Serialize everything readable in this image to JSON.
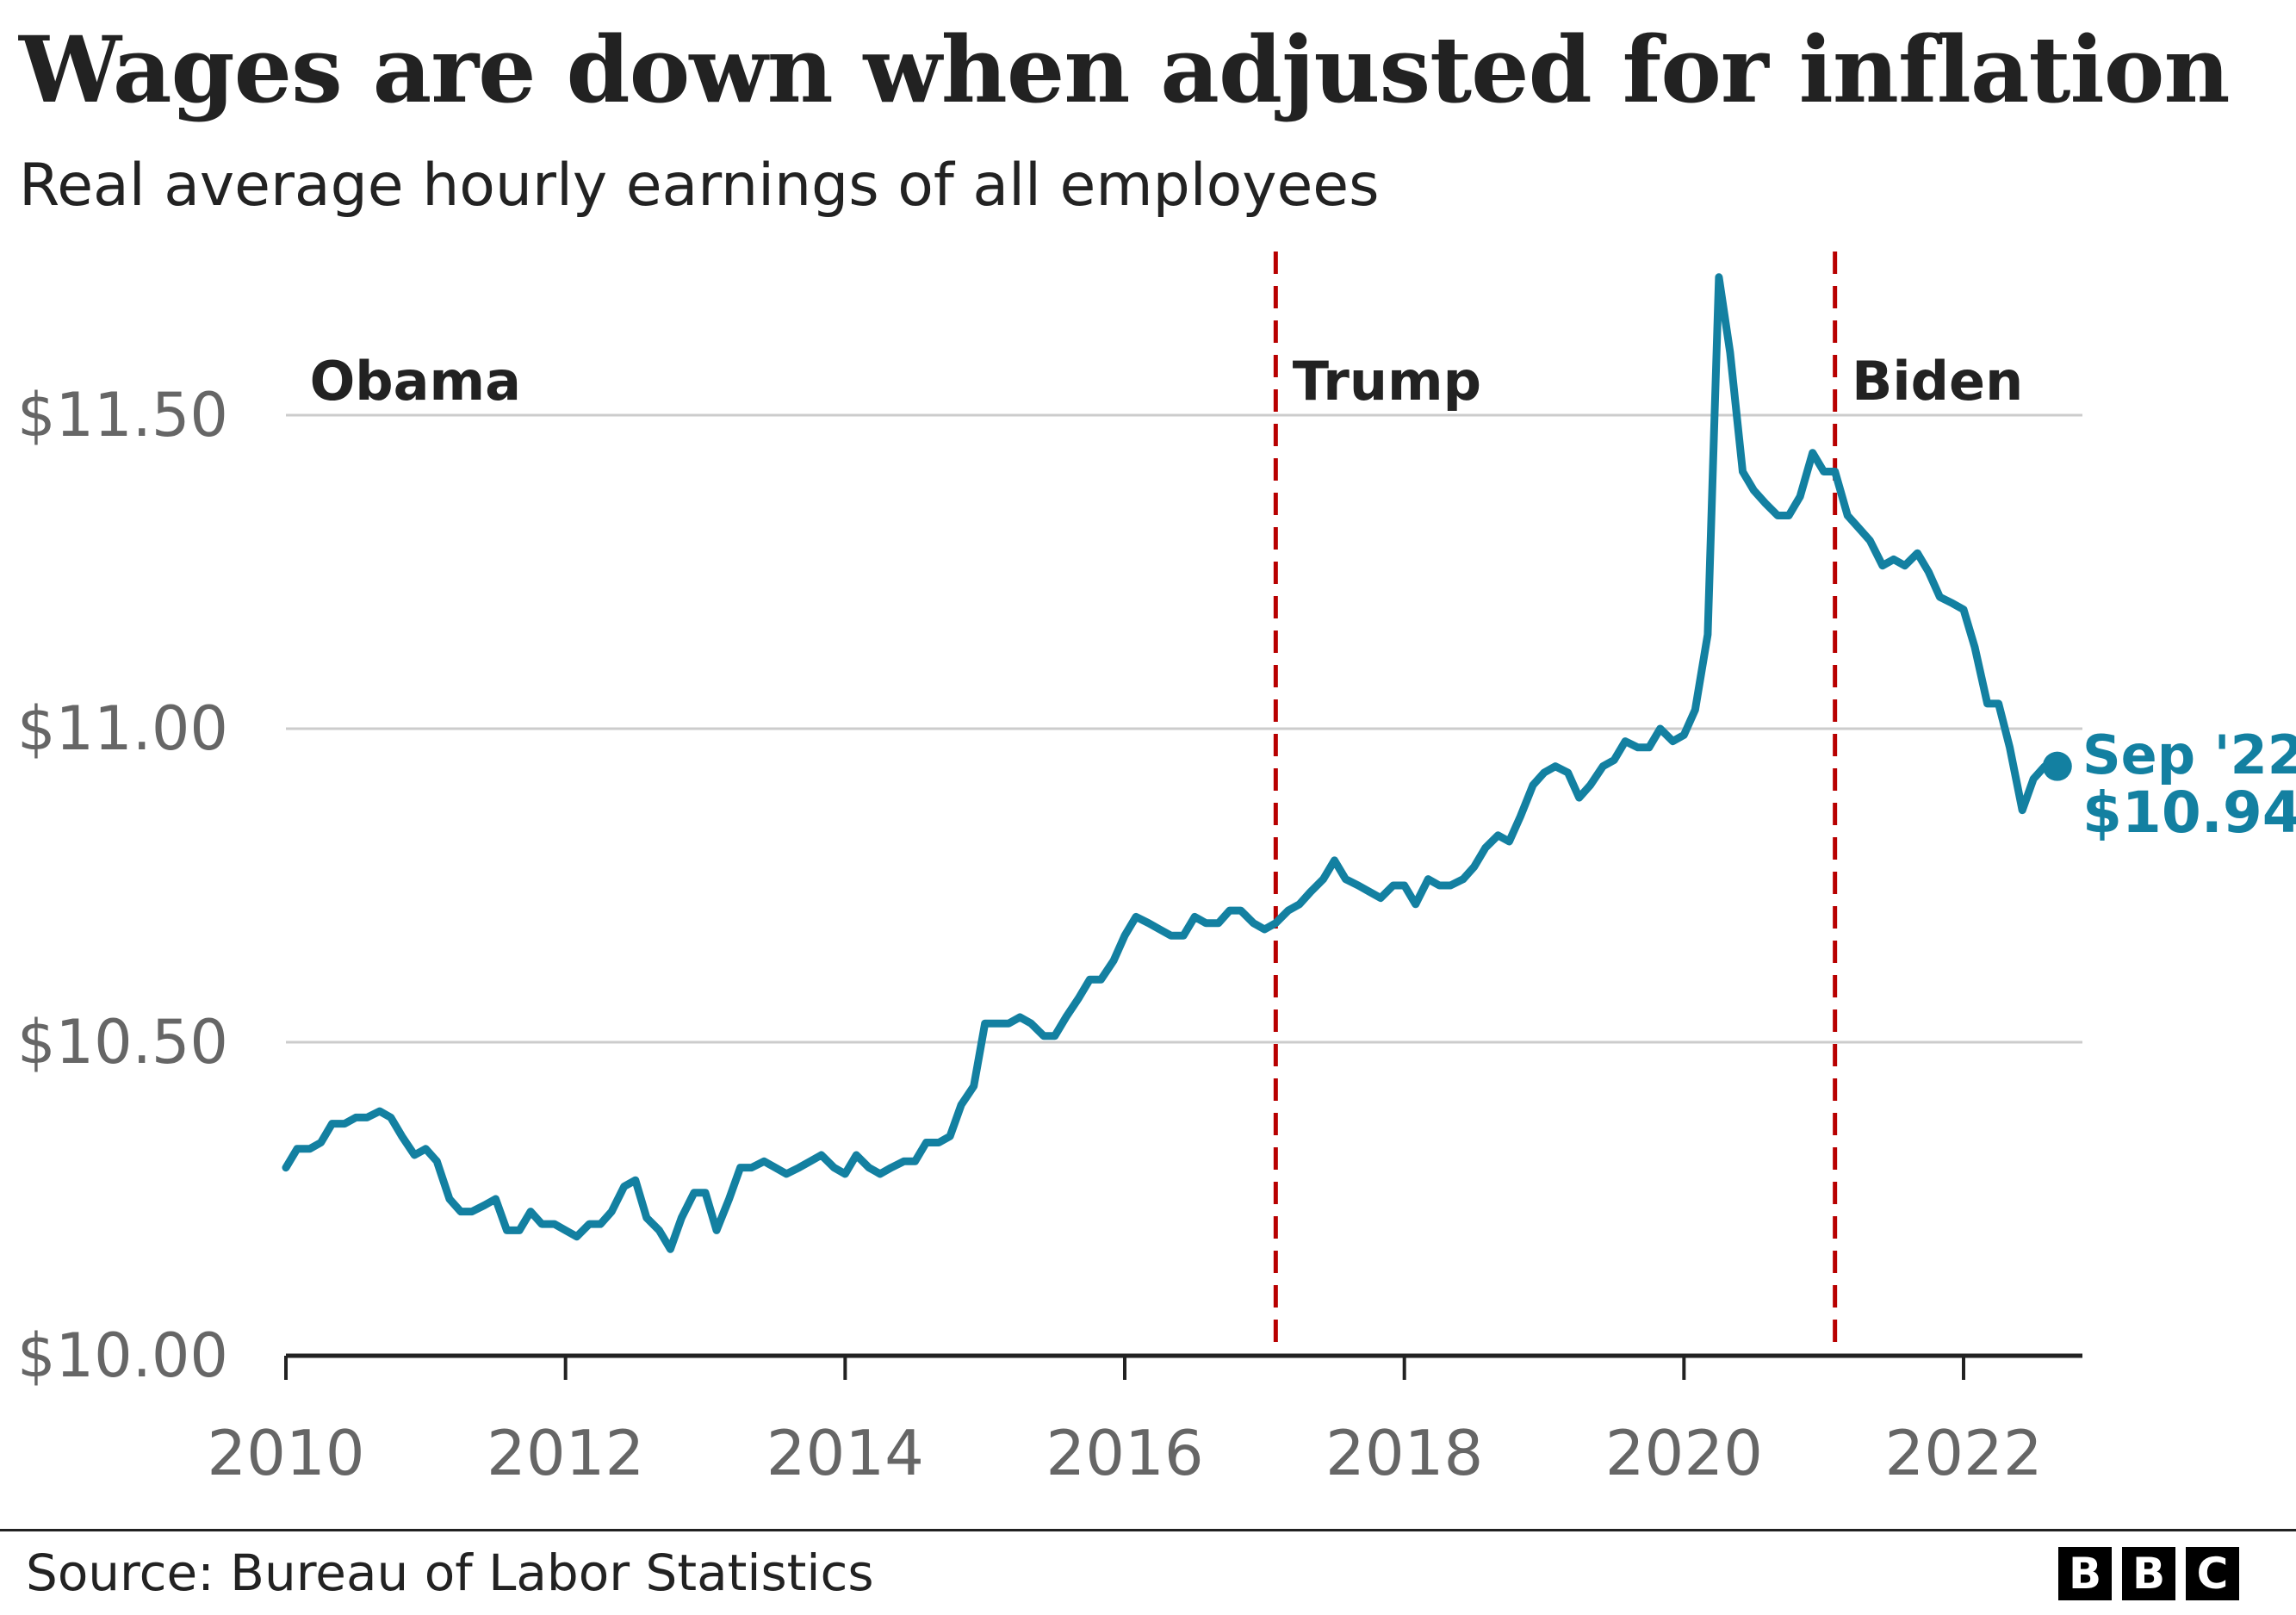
{
  "header": {
    "title": "Wages are down when adjusted for inflation",
    "subtitle": "Real average hourly earnings of all employees"
  },
  "footer": {
    "source": "Source: Bureau of Labor Statistics",
    "logo": [
      "B",
      "B",
      "C"
    ]
  },
  "colors": {
    "line": "#1380A1",
    "divider": "#B80000",
    "grid": "#CCCCCC",
    "axis": "#222222",
    "tick": "#666666"
  },
  "chart_data": {
    "type": "line",
    "title": "Wages are down when adjusted for inflation",
    "subtitle": "Real average hourly earnings of all employees",
    "xlabel": "",
    "ylabel": "",
    "xlim": [
      2010,
      2022.85
    ],
    "ylim": [
      10.0,
      11.75
    ],
    "y_ticks": [
      10.0,
      10.5,
      11.0,
      11.5
    ],
    "y_tick_labels": [
      "$10.00",
      "$10.50",
      "$11.00",
      "$11.50"
    ],
    "x_ticks": [
      2010,
      2012,
      2014,
      2016,
      2018,
      2020,
      2022
    ],
    "x_tick_labels": [
      "2010",
      "2012",
      "2014",
      "2016",
      "2018",
      "2020",
      "2022"
    ],
    "grid": "horizontal",
    "dividers": [
      {
        "x": 2017.08,
        "label": "Trump"
      },
      {
        "x": 2021.08,
        "label": "Biden"
      }
    ],
    "period_labels": [
      {
        "label": "Obama",
        "x": 2010.17
      },
      {
        "label": "Trump",
        "x": 2017.2
      },
      {
        "label": "Biden",
        "x": 2021.2
      }
    ],
    "endpoint": {
      "x": 2022.67,
      "y": 10.94,
      "date_label": "Sep '22",
      "value_label": "$10.94"
    },
    "series": [
      {
        "name": "Real average hourly earnings",
        "x": [
          2010.0,
          2010.08,
          2010.17,
          2010.25,
          2010.33,
          2010.42,
          2010.5,
          2010.58,
          2010.67,
          2010.75,
          2010.83,
          2010.92,
          2011.0,
          2011.08,
          2011.17,
          2011.25,
          2011.33,
          2011.42,
          2011.5,
          2011.58,
          2011.67,
          2011.75,
          2011.83,
          2011.92,
          2012.0,
          2012.08,
          2012.17,
          2012.25,
          2012.33,
          2012.42,
          2012.5,
          2012.58,
          2012.67,
          2012.75,
          2012.83,
          2012.92,
          2013.0,
          2013.08,
          2013.17,
          2013.25,
          2013.33,
          2013.42,
          2013.5,
          2013.58,
          2013.67,
          2013.75,
          2013.83,
          2013.92,
          2014.0,
          2014.08,
          2014.17,
          2014.25,
          2014.33,
          2014.42,
          2014.5,
          2014.58,
          2014.67,
          2014.75,
          2014.83,
          2014.92,
          2015.0,
          2015.08,
          2015.17,
          2015.25,
          2015.33,
          2015.42,
          2015.5,
          2015.58,
          2015.67,
          2015.75,
          2015.83,
          2015.92,
          2016.0,
          2016.08,
          2016.17,
          2016.25,
          2016.33,
          2016.42,
          2016.5,
          2016.58,
          2016.67,
          2016.75,
          2016.83,
          2016.92,
          2017.0,
          2017.08,
          2017.17,
          2017.25,
          2017.33,
          2017.42,
          2017.5,
          2017.58,
          2017.67,
          2017.75,
          2017.83,
          2017.92,
          2018.0,
          2018.08,
          2018.17,
          2018.25,
          2018.33,
          2018.42,
          2018.5,
          2018.58,
          2018.67,
          2018.75,
          2018.83,
          2018.92,
          2019.0,
          2019.08,
          2019.17,
          2019.25,
          2019.33,
          2019.42,
          2019.5,
          2019.58,
          2019.67,
          2019.75,
          2019.83,
          2019.92,
          2020.0,
          2020.08,
          2020.17,
          2020.25,
          2020.33,
          2020.42,
          2020.5,
          2020.58,
          2020.67,
          2020.75,
          2020.83,
          2020.92,
          2021.0,
          2021.08,
          2021.17,
          2021.25,
          2021.33,
          2021.42,
          2021.5,
          2021.58,
          2021.67,
          2021.75,
          2021.83,
          2021.92,
          2022.0,
          2022.08,
          2022.17,
          2022.25,
          2022.33,
          2022.42,
          2022.5,
          2022.58,
          2022.67
        ],
        "values": [
          10.3,
          10.33,
          10.33,
          10.34,
          10.37,
          10.37,
          10.38,
          10.38,
          10.39,
          10.38,
          10.35,
          10.32,
          10.33,
          10.31,
          10.25,
          10.23,
          10.23,
          10.24,
          10.25,
          10.2,
          10.2,
          10.23,
          10.21,
          10.21,
          10.2,
          10.19,
          10.21,
          10.21,
          10.23,
          10.27,
          10.28,
          10.22,
          10.2,
          10.17,
          10.22,
          10.26,
          10.26,
          10.2,
          10.25,
          10.3,
          10.3,
          10.31,
          10.3,
          10.29,
          10.3,
          10.31,
          10.32,
          10.3,
          10.29,
          10.32,
          10.3,
          10.29,
          10.3,
          10.31,
          10.31,
          10.34,
          10.34,
          10.35,
          10.4,
          10.43,
          10.53,
          10.53,
          10.53,
          10.54,
          10.53,
          10.51,
          10.51,
          10.54,
          10.57,
          10.6,
          10.6,
          10.63,
          10.67,
          10.7,
          10.69,
          10.68,
          10.67,
          10.67,
          10.7,
          10.69,
          10.69,
          10.71,
          10.71,
          10.69,
          10.68,
          10.69,
          10.71,
          10.72,
          10.74,
          10.76,
          10.79,
          10.76,
          10.75,
          10.74,
          10.73,
          10.75,
          10.75,
          10.72,
          10.76,
          10.75,
          10.75,
          10.76,
          10.78,
          10.81,
          10.83,
          10.82,
          10.86,
          10.91,
          10.93,
          10.94,
          10.93,
          10.89,
          10.91,
          10.94,
          10.95,
          10.98,
          10.97,
          10.97,
          11.0,
          10.98,
          10.99,
          11.03,
          11.15,
          11.72,
          11.6,
          11.41,
          11.38,
          11.36,
          11.34,
          11.34,
          11.37,
          11.44,
          11.41,
          11.41,
          11.34,
          11.32,
          11.3,
          11.26,
          11.27,
          11.26,
          11.28,
          11.25,
          11.21,
          11.2,
          11.19,
          11.13,
          11.04,
          11.04,
          10.97,
          10.87,
          10.92,
          10.94,
          10.94
        ]
      }
    ]
  }
}
